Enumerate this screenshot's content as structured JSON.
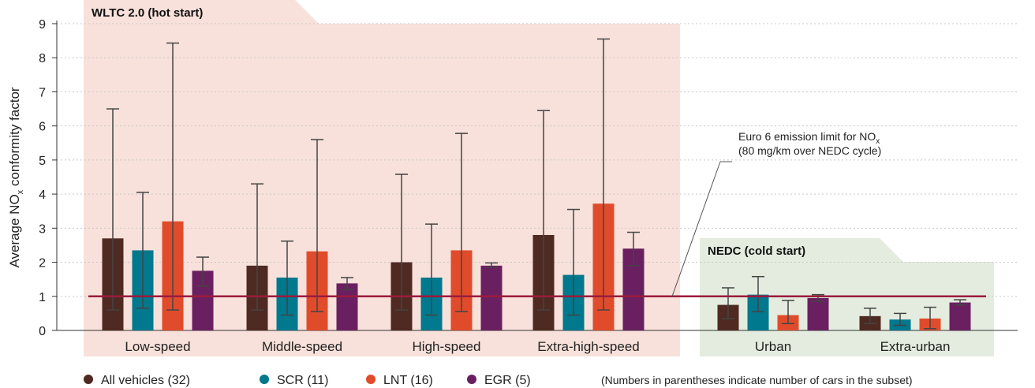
{
  "chart_data": {
    "type": "bar",
    "ylabel_main": "Average NO",
    "ylabel_sub": "x",
    "ylabel_tail": " conformity factor",
    "ylim": [
      0,
      9
    ],
    "yticks": [
      "0",
      "1",
      "2",
      "3",
      "4",
      "5",
      "6",
      "7",
      "8",
      "9"
    ],
    "grid": true,
    "colors": {
      "wltc_panel": "#f8e1da",
      "wltc_tab": "#f8e1da",
      "nedc_panel": "#e4ecdf",
      "nedc_tab": "#e4ecdf",
      "limit_line": "#9b1b3c",
      "grid": "#c8c8c8",
      "errorbar": "#444444"
    },
    "panels": [
      {
        "label": "WLTC 2.0 (hot start)",
        "categories": [
          0,
          1,
          2,
          3
        ]
      },
      {
        "label": "NEDC (cold start)",
        "categories": [
          4,
          5
        ]
      }
    ],
    "categories": [
      "Low-speed",
      "Middle-speed",
      "High-speed",
      "Extra-high-speed",
      "Urban",
      "Extra-urban"
    ],
    "series": [
      {
        "name": "All vehicles (32)",
        "color": "#4e2a22",
        "values": [
          2.7,
          1.9,
          2.0,
          2.8,
          0.75,
          0.42
        ],
        "err_low": [
          0.6,
          0.6,
          0.6,
          0.6,
          0.35,
          0.2
        ],
        "err_high": [
          6.5,
          4.3,
          4.58,
          6.45,
          1.25,
          0.65
        ]
      },
      {
        "name": "SCR (11)",
        "color": "#00788e",
        "values": [
          2.35,
          1.55,
          1.55,
          1.63,
          1.05,
          0.32
        ],
        "err_low": [
          0.65,
          0.45,
          0.45,
          0.45,
          0.55,
          0.15
        ],
        "err_high": [
          4.05,
          2.62,
          3.12,
          3.55,
          1.58,
          0.5
        ]
      },
      {
        "name": "LNT (16)",
        "color": "#e04c2b",
        "values": [
          3.2,
          2.32,
          2.35,
          3.72,
          0.45,
          0.35
        ],
        "err_low": [
          0.6,
          0.55,
          0.55,
          0.6,
          0.2,
          0.05
        ],
        "err_high": [
          8.43,
          5.6,
          5.78,
          8.55,
          0.88,
          0.68
        ]
      },
      {
        "name": "EGR (5)",
        "color": "#6a2060",
        "values": [
          1.75,
          1.38,
          1.9,
          2.4,
          0.95,
          0.82
        ],
        "err_low": [
          1.3,
          1.2,
          1.85,
          1.9,
          0.85,
          0.75
        ],
        "err_high": [
          2.15,
          1.55,
          1.98,
          2.88,
          1.05,
          0.9
        ]
      }
    ],
    "limit": {
      "value": 1,
      "label_line1": "Euro 6 emission limit for NO",
      "label_line1_sub": "x",
      "label_line2": "(80 mg/km over NEDC cycle)"
    },
    "legend_note": "(Numbers in parentheses indicate number of cars in the subset)",
    "legend_position": "bottom"
  }
}
